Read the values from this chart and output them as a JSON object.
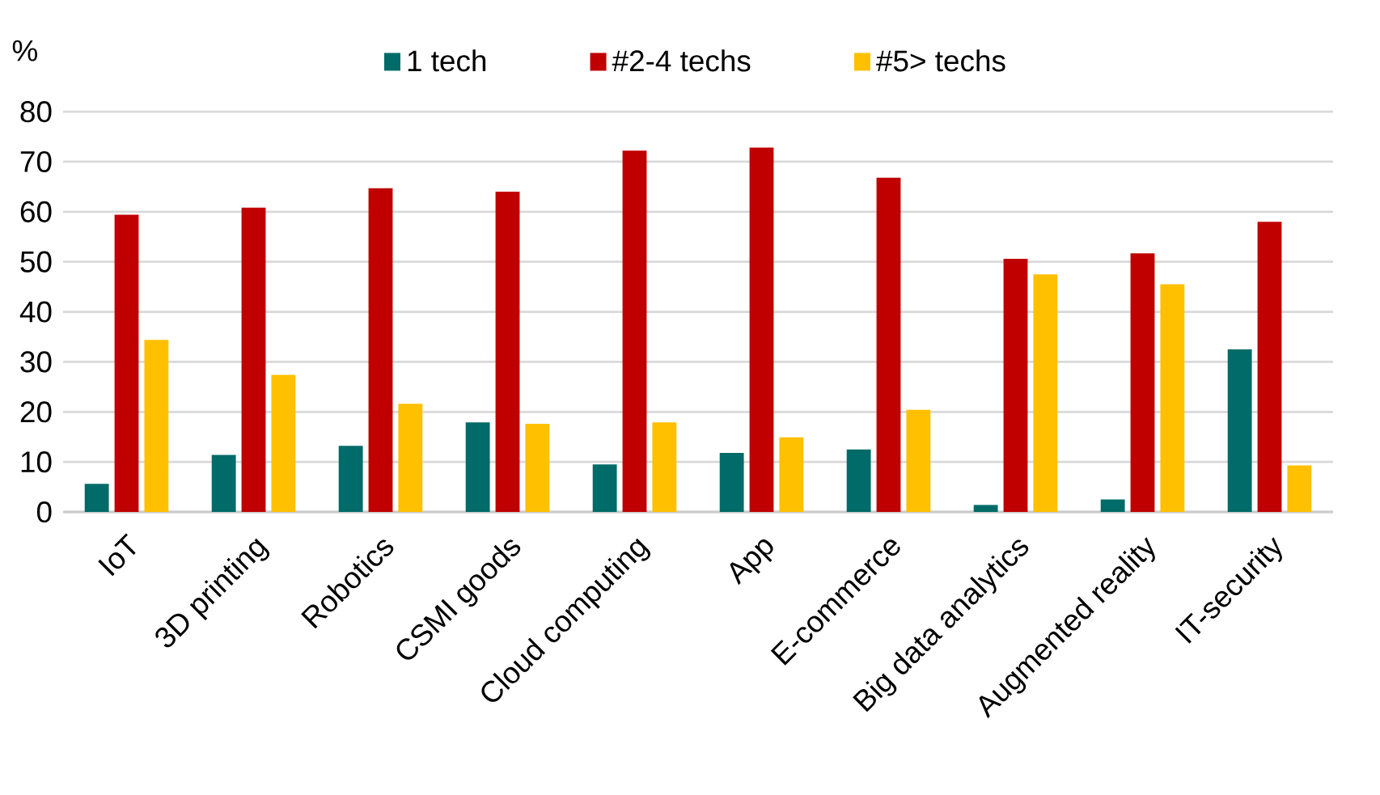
{
  "chart_data": {
    "type": "bar",
    "ylabel": "%",
    "categories": [
      "IoT",
      "3D printing",
      "Robotics",
      "CSMI goods",
      "Cloud computing",
      "App",
      "E-commerce",
      "Big data analytics",
      "Augmented reality",
      "IT-security"
    ],
    "series": [
      {
        "name": "1 tech",
        "color": "#006b68",
        "values": [
          5.6,
          11.4,
          13.2,
          17.9,
          9.5,
          11.8,
          12.5,
          1.4,
          2.5,
          32.5
        ]
      },
      {
        "name": "#2-4 techs",
        "color": "#c00000",
        "values": [
          59.4,
          60.8,
          64.7,
          64.0,
          72.2,
          72.8,
          66.8,
          50.6,
          51.7,
          58.0
        ]
      },
      {
        "name": "#5> techs",
        "color": "#ffc000",
        "values": [
          34.4,
          27.4,
          21.6,
          17.6,
          17.9,
          14.9,
          20.4,
          47.5,
          45.5,
          9.3
        ]
      }
    ],
    "ylim": [
      0,
      80
    ],
    "yticks": [
      0,
      10,
      20,
      30,
      40,
      50,
      60,
      70,
      80
    ],
    "grid": "y",
    "legend": "top"
  }
}
